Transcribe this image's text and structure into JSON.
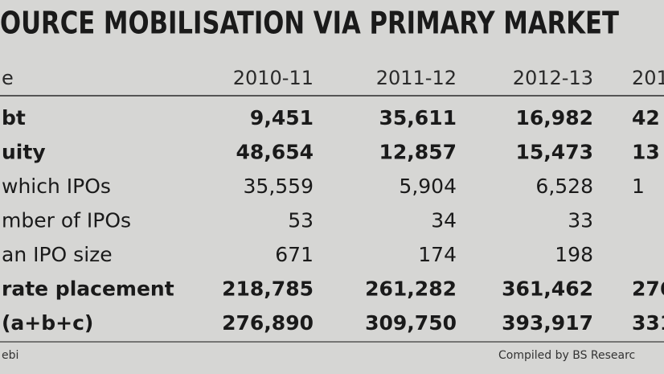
{
  "title": "OURCE MOBILISATION VIA PRIMARY MARKET",
  "header": [
    "e",
    "2010-11",
    "2011-12",
    "2012-13",
    "201"
  ],
  "rows": [
    [
      "bt",
      "9,451",
      "35,611",
      "16,982",
      "42"
    ],
    [
      "uity",
      "48,654",
      "12,857",
      "15,473",
      "13"
    ],
    [
      "which IPOs",
      "35,559",
      "5,904",
      "6,528",
      "1"
    ],
    [
      "mber of IPOs",
      "53",
      "34",
      "33"
    ],
    [
      "an IPO size",
      "671",
      "174",
      "198"
    ],
    [
      "rate placement",
      "218,785",
      "261,282",
      "361,462",
      "276"
    ],
    [
      "(a+b+c)",
      "276,890",
      "309,750",
      "393,917",
      "331"
    ]
  ],
  "bold_rows": [
    0,
    1,
    5,
    6
  ],
  "footer": {
    "source": "ebi",
    "credit": "Compiled by BS Researc"
  }
}
